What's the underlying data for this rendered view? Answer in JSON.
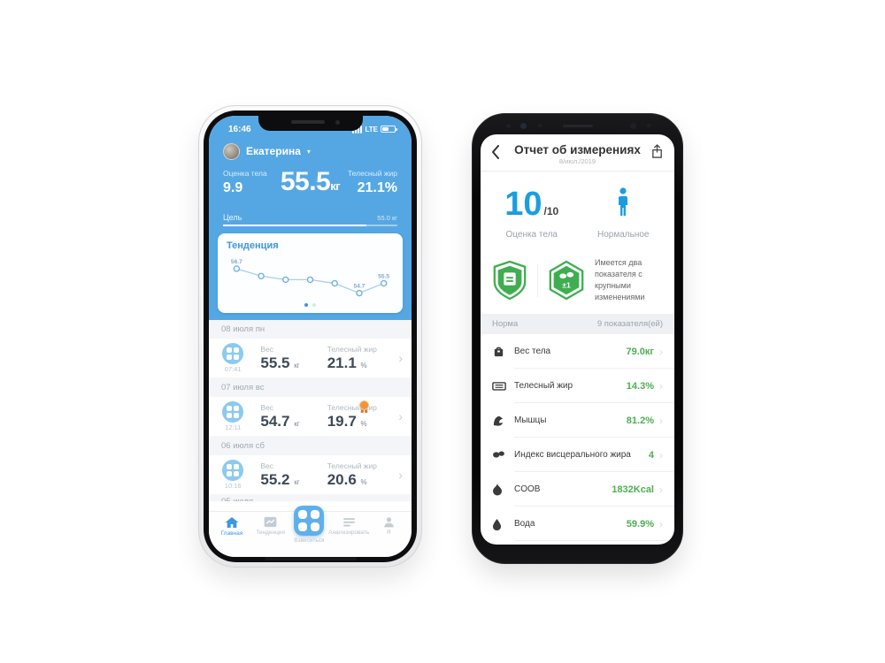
{
  "colors": {
    "header_blue": "#55a7e4",
    "nav_active_blue": "#3d97e0",
    "score_blue": "#1a9ee0",
    "value_green": "#4caf50",
    "badge_green": "#3fae50",
    "medal_orange": "#f0933c"
  },
  "left_phone": {
    "statusbar": {
      "time": "16:46",
      "network": "LTE"
    },
    "profile": {
      "name": "Екатерина"
    },
    "stats": {
      "score_label": "Оценка тела",
      "score_value": "9.9",
      "weight_value": "55.5",
      "weight_unit": "кг",
      "fat_label": "Телесный жир",
      "fat_value": "21.1%"
    },
    "goal": {
      "label": "Цель",
      "target": "55.0 кг"
    },
    "trend": {
      "title": "Тенденция"
    },
    "sections": [
      {
        "date": "08 июля пн",
        "row": {
          "time": "07:41",
          "weight_label": "Вес",
          "weight": "55.5",
          "weight_unit": "кг",
          "fat_label": "Телесный жир",
          "fat": "21.1",
          "fat_unit": "%"
        }
      },
      {
        "date": "07 июля вс",
        "row": {
          "time": "12:11",
          "weight_label": "Вес",
          "weight": "54.7",
          "weight_unit": "кг",
          "fat_label": "Телесный жир",
          "fat": "19.7",
          "fat_unit": "%"
        }
      },
      {
        "date": "06 июля сб",
        "row": {
          "time": "10:16",
          "weight_label": "Вес",
          "weight": "55.2",
          "weight_unit": "кг",
          "fat_label": "Телесный жир",
          "fat": "20.6",
          "fat_unit": "%"
        }
      }
    ],
    "partial_section": "05 июля",
    "nav": [
      {
        "label": "Главная"
      },
      {
        "label": "Тенденция"
      },
      {
        "label": "Взвеситься"
      },
      {
        "label": "Анализировать"
      },
      {
        "label": "Я"
      }
    ]
  },
  "right_phone": {
    "header": {
      "title": "Отчет об измерениях",
      "date": "8/июл./2019"
    },
    "score": {
      "value": "10",
      "max": "/10",
      "label": "Оценка тела",
      "status_label": "Нормальное"
    },
    "badges": {
      "hex_label": "±1",
      "text": "Имеется два показателя с крупными изменениями"
    },
    "norm": {
      "label": "Норма",
      "count": "9 показателя(ей)"
    },
    "rows": [
      {
        "icon": "weight-icon",
        "label": "Вес тела",
        "value": "79.0кг"
      },
      {
        "icon": "caliper-icon",
        "label": "Телесный жир",
        "value": "14.3%"
      },
      {
        "icon": "muscle-icon",
        "label": "Мышцы",
        "value": "81.2%"
      },
      {
        "icon": "visceral-fat-icon",
        "label": "Индекс висцерального жира",
        "value": "4"
      },
      {
        "icon": "flame-icon",
        "label": "COOB",
        "value": "1832Kcal"
      },
      {
        "icon": "water-drop-icon",
        "label": "Вода",
        "value": "59.9%"
      }
    ]
  },
  "chart_data": {
    "type": "line",
    "title": "Тенденция",
    "x": [
      1,
      2,
      3,
      4,
      5,
      6,
      7
    ],
    "values": [
      56.7,
      56.1,
      55.8,
      55.8,
      55.5,
      54.7,
      55.5
    ],
    "point_labels": {
      "0": "56.7",
      "5": "54.7",
      "6": "55.5"
    },
    "ylim": [
      54.4,
      57.0
    ],
    "grid": false,
    "legend": false,
    "pagination": {
      "pages": 2,
      "active": 0
    }
  }
}
